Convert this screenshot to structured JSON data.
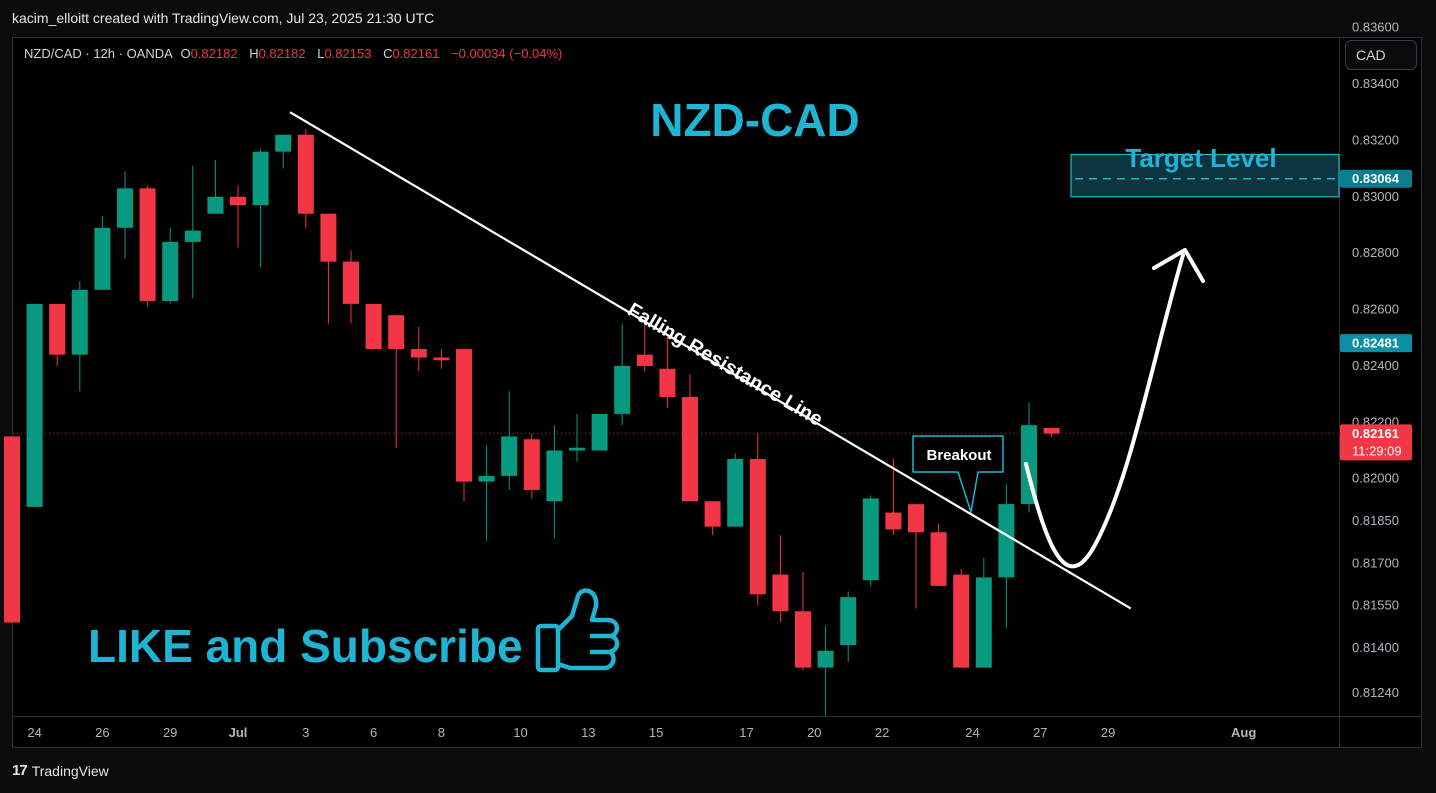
{
  "header": {
    "caption": "kacim_elloitt created with TradingView.com, Jul 23, 2025 21:30 UTC"
  },
  "legend": {
    "symbol": "NZD/CAD · 12h · OANDA",
    "open_label": "O",
    "open": "0.82182",
    "high_label": "H",
    "high": "0.82182",
    "low_label": "L",
    "low": "0.82153",
    "close_label": "C",
    "close": "0.82161",
    "change": "−0.00034 (−0.04%)"
  },
  "currency_button": {
    "label": "CAD"
  },
  "footer": {
    "brand": "TradingView",
    "logo": "tradingview-logo-icon"
  },
  "colors": {
    "up": "#089981",
    "down": "#f23645",
    "annotation": "#1fb4d4",
    "background": "#000000"
  },
  "chart_data": {
    "type": "candlestick",
    "title": "NZD-CAD",
    "instrument": "NZD/CAD",
    "timeframe": "12h",
    "ylim": [
      0.8115,
      0.836
    ],
    "y_ticks": [
      {
        "value": 0.834,
        "label": "0.83400"
      },
      {
        "value": 0.832,
        "label": "0.83200"
      },
      {
        "value": 0.83,
        "label": "0.83000"
      },
      {
        "value": 0.828,
        "label": "0.82800"
      },
      {
        "value": 0.826,
        "label": "0.82600"
      },
      {
        "value": 0.824,
        "label": "0.82400"
      },
      {
        "value": 0.822,
        "label": "0.82200"
      },
      {
        "value": 0.82,
        "label": "0.82000"
      },
      {
        "value": 0.8185,
        "label": "0.81850"
      },
      {
        "value": 0.817,
        "label": "0.81700"
      },
      {
        "value": 0.8155,
        "label": "0.81550"
      },
      {
        "value": 0.814,
        "label": "0.81400"
      },
      {
        "value": 0.8124,
        "label": "0.81240"
      }
    ],
    "x_ticks": [
      {
        "bar": 1,
        "label": "24"
      },
      {
        "bar": 4,
        "label": "26"
      },
      {
        "bar": 7,
        "label": "29"
      },
      {
        "bar": 10,
        "label": "Jul"
      },
      {
        "bar": 13,
        "label": "3"
      },
      {
        "bar": 16,
        "label": "6"
      },
      {
        "bar": 19,
        "label": "8"
      },
      {
        "bar": 22.5,
        "label": "10"
      },
      {
        "bar": 25.5,
        "label": "13"
      },
      {
        "bar": 28.5,
        "label": "15"
      },
      {
        "bar": 32.5,
        "label": "17"
      },
      {
        "bar": 35.5,
        "label": "20"
      },
      {
        "bar": 38.5,
        "label": "22"
      },
      {
        "bar": 42.5,
        "label": "24"
      },
      {
        "bar": 45.5,
        "label": "27"
      },
      {
        "bar": 48.5,
        "label": "29"
      },
      {
        "bar": 54.5,
        "label": "Aug"
      }
    ],
    "candles": [
      {
        "o": 0.8215,
        "h": 0.8215,
        "l": 0.8149,
        "c": 0.8149
      },
      {
        "o": 0.819,
        "h": 0.8262,
        "l": 0.819,
        "c": 0.8262
      },
      {
        "o": 0.8262,
        "h": 0.8262,
        "l": 0.824,
        "c": 0.8244
      },
      {
        "o": 0.8244,
        "h": 0.827,
        "l": 0.8231,
        "c": 0.8267
      },
      {
        "o": 0.8267,
        "h": 0.8293,
        "l": 0.8267,
        "c": 0.8289
      },
      {
        "o": 0.8289,
        "h": 0.8309,
        "l": 0.8278,
        "c": 0.8303
      },
      {
        "o": 0.8303,
        "h": 0.8304,
        "l": 0.8261,
        "c": 0.8263
      },
      {
        "o": 0.8263,
        "h": 0.8289,
        "l": 0.8262,
        "c": 0.8284
      },
      {
        "o": 0.8284,
        "h": 0.8311,
        "l": 0.8264,
        "c": 0.8288
      },
      {
        "o": 0.8294,
        "h": 0.8313,
        "l": 0.8294,
        "c": 0.83
      },
      {
        "o": 0.83,
        "h": 0.8304,
        "l": 0.8282,
        "c": 0.8297
      },
      {
        "o": 0.8297,
        "h": 0.8317,
        "l": 0.8275,
        "c": 0.8316
      },
      {
        "o": 0.8316,
        "h": 0.8322,
        "l": 0.831,
        "c": 0.8322
      },
      {
        "o": 0.8322,
        "h": 0.8324,
        "l": 0.8289,
        "c": 0.8294
      },
      {
        "o": 0.8294,
        "h": 0.8294,
        "l": 0.8255,
        "c": 0.8277
      },
      {
        "o": 0.8277,
        "h": 0.8281,
        "l": 0.8255,
        "c": 0.8262
      },
      {
        "o": 0.8262,
        "h": 0.8262,
        "l": 0.8246,
        "c": 0.8246
      },
      {
        "o": 0.8258,
        "h": 0.8258,
        "l": 0.8211,
        "c": 0.8246
      },
      {
        "o": 0.8246,
        "h": 0.8254,
        "l": 0.8238,
        "c": 0.8243
      },
      {
        "o": 0.8243,
        "h": 0.8246,
        "l": 0.8239,
        "c": 0.8242
      },
      {
        "o": 0.8246,
        "h": 0.8246,
        "l": 0.8192,
        "c": 0.8199
      },
      {
        "o": 0.8199,
        "h": 0.8212,
        "l": 0.8178,
        "c": 0.8201
      },
      {
        "o": 0.8201,
        "h": 0.8231,
        "l": 0.8196,
        "c": 0.8215
      },
      {
        "o": 0.8214,
        "h": 0.8216,
        "l": 0.8193,
        "c": 0.8196
      },
      {
        "o": 0.8192,
        "h": 0.8219,
        "l": 0.8179,
        "c": 0.821
      },
      {
        "o": 0.821,
        "h": 0.8223,
        "l": 0.8206,
        "c": 0.8211
      },
      {
        "o": 0.821,
        "h": 0.8223,
        "l": 0.821,
        "c": 0.8223
      },
      {
        "o": 0.8223,
        "h": 0.8255,
        "l": 0.8219,
        "c": 0.824
      },
      {
        "o": 0.8244,
        "h": 0.8258,
        "l": 0.8238,
        "c": 0.824
      },
      {
        "o": 0.8239,
        "h": 0.8251,
        "l": 0.8225,
        "c": 0.8229
      },
      {
        "o": 0.8229,
        "h": 0.8237,
        "l": 0.8192,
        "c": 0.8192
      },
      {
        "o": 0.8192,
        "h": 0.8192,
        "l": 0.818,
        "c": 0.8183
      },
      {
        "o": 0.8183,
        "h": 0.8209,
        "l": 0.8183,
        "c": 0.8207
      },
      {
        "o": 0.8207,
        "h": 0.8216,
        "l": 0.8155,
        "c": 0.8159
      },
      {
        "o": 0.8166,
        "h": 0.818,
        "l": 0.8149,
        "c": 0.8153
      },
      {
        "o": 0.8153,
        "h": 0.8167,
        "l": 0.8132,
        "c": 0.8133
      },
      {
        "o": 0.8133,
        "h": 0.8148,
        "l": 0.8116,
        "c": 0.8139
      },
      {
        "o": 0.8141,
        "h": 0.816,
        "l": 0.8135,
        "c": 0.8158
      },
      {
        "o": 0.8164,
        "h": 0.8194,
        "l": 0.8162,
        "c": 0.8193
      },
      {
        "o": 0.8188,
        "h": 0.8207,
        "l": 0.818,
        "c": 0.8182
      },
      {
        "o": 0.8191,
        "h": 0.8191,
        "l": 0.8154,
        "c": 0.8181
      },
      {
        "o": 0.8181,
        "h": 0.8184,
        "l": 0.8162,
        "c": 0.8162
      },
      {
        "o": 0.8166,
        "h": 0.8168,
        "l": 0.8133,
        "c": 0.8133
      },
      {
        "o": 0.8133,
        "h": 0.8172,
        "l": 0.8133,
        "c": 0.8165
      },
      {
        "o": 0.8165,
        "h": 0.8198,
        "l": 0.8147,
        "c": 0.8191
      },
      {
        "o": 0.8191,
        "h": 0.8227,
        "l": 0.8188,
        "c": 0.8219
      },
      {
        "o": 0.8218,
        "h": 0.8218,
        "l": 0.8215,
        "c": 0.8216
      }
    ],
    "last_price": {
      "value": 0.82161,
      "label": "0.82161",
      "countdown": "11:29:09"
    },
    "price_marker": {
      "value": 0.82481,
      "label": "0.82481"
    },
    "target": {
      "value": 0.83064,
      "label": "0.83064",
      "text": "Target Level",
      "zone": [
        0.83,
        0.8315
      ]
    },
    "resistance_line": {
      "label": "Falling Resistance Line",
      "start": {
        "bar": 12.3,
        "value": 0.833
      },
      "end": {
        "bar": 49.5,
        "value": 0.8154
      }
    },
    "breakout": {
      "label": "Breakout"
    },
    "promo_text": "LIKE and Subscribe"
  }
}
